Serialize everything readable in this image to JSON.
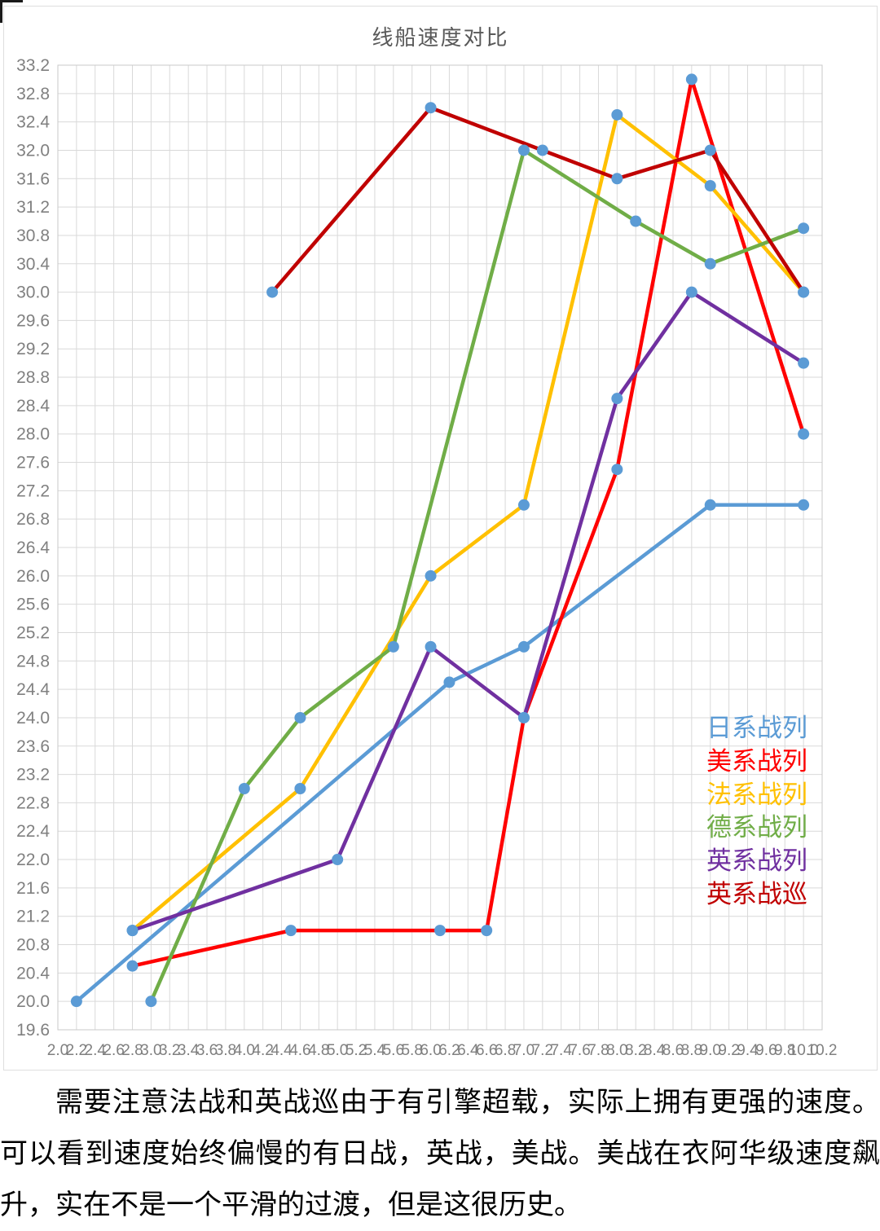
{
  "page": {
    "paragraph": "需要注意法战和英战巡由于有引擎超载，实际上拥有更强的速度。可以看到速度始终偏慢的有日战，英战，美战。美战在衣阿华级速度飙升，实在不是一个平滑的过渡，但是这很历史。"
  },
  "chart_data": {
    "type": "line",
    "title": "线船速度对比",
    "xlabel": "",
    "ylabel": "",
    "xlim": [
      2.0,
      10.2
    ],
    "ylim": [
      19.6,
      33.2
    ],
    "grid": true,
    "legend_position": "right-inside",
    "grid_color": "#d9d9d9",
    "axis_text_color": "#808080",
    "title_color": "#595959",
    "marker_color": "#5B9BD5",
    "x_ticks": [
      "2.0",
      "2.2",
      "2.4",
      "2.6",
      "2.8",
      "3.0",
      "3.2",
      "3.4",
      "3.6",
      "3.8",
      "4.0",
      "4.2",
      "4.4",
      "4.6",
      "4.8",
      "5.0",
      "5.2",
      "5.4",
      "5.6",
      "5.8",
      "6.0",
      "6.2",
      "6.4",
      "6.6",
      "6.8",
      "7.0",
      "7.2",
      "7.4",
      "7.6",
      "7.8",
      "8.0",
      "8.2",
      "8.4",
      "8.6",
      "8.8",
      "9.0",
      "9.2",
      "9.4",
      "9.6",
      "9.8",
      "10.0",
      "10.2"
    ],
    "y_ticks": [
      "19.6",
      "20.0",
      "20.4",
      "20.8",
      "21.2",
      "21.6",
      "22.0",
      "22.4",
      "22.8",
      "23.2",
      "23.6",
      "24.0",
      "24.4",
      "24.8",
      "25.2",
      "25.6",
      "26.0",
      "26.4",
      "26.8",
      "27.2",
      "27.6",
      "28.0",
      "28.4",
      "28.8",
      "29.2",
      "29.6",
      "30.0",
      "30.4",
      "30.8",
      "31.2",
      "31.6",
      "32.0",
      "32.4",
      "32.8",
      "33.2"
    ],
    "series": [
      {
        "name": "日系战列",
        "color": "#5B9BD5",
        "points": [
          [
            2.2,
            20.0
          ],
          [
            6.2,
            24.5
          ],
          [
            7.0,
            25.0
          ],
          [
            9.0,
            27.0
          ],
          [
            10.0,
            27.0
          ]
        ]
      },
      {
        "name": "美系战列",
        "color": "#FF0000",
        "points": [
          [
            2.8,
            20.5
          ],
          [
            4.5,
            21.0
          ],
          [
            6.1,
            21.0
          ],
          [
            6.6,
            21.0
          ],
          [
            7.0,
            24.0
          ],
          [
            8.0,
            27.5
          ],
          [
            8.8,
            33.0
          ],
          [
            10.0,
            28.0
          ]
        ]
      },
      {
        "name": "法系战列",
        "color": "#FFC000",
        "points": [
          [
            2.8,
            21.0
          ],
          [
            4.6,
            23.0
          ],
          [
            6.0,
            26.0
          ],
          [
            7.0,
            27.0
          ],
          [
            8.0,
            32.5
          ],
          [
            9.0,
            31.5
          ],
          [
            10.0,
            30.0
          ]
        ]
      },
      {
        "name": "德系战列",
        "color": "#70AD47",
        "points": [
          [
            3.0,
            20.0
          ],
          [
            4.0,
            23.0
          ],
          [
            4.6,
            24.0
          ],
          [
            5.6,
            25.0
          ],
          [
            7.0,
            32.0
          ],
          [
            8.2,
            31.0
          ],
          [
            9.0,
            30.4
          ],
          [
            10.0,
            30.9
          ]
        ]
      },
      {
        "name": "英系战列",
        "color": "#7030A0",
        "points": [
          [
            2.8,
            21.0
          ],
          [
            5.0,
            22.0
          ],
          [
            6.0,
            25.0
          ],
          [
            7.0,
            24.0
          ],
          [
            8.0,
            28.5
          ],
          [
            8.8,
            30.0
          ],
          [
            10.0,
            29.0
          ]
        ]
      },
      {
        "name": "英系战巡",
        "color": "#C00000",
        "points": [
          [
            4.3,
            30.0
          ],
          [
            6.0,
            32.6
          ],
          [
            7.2,
            32.0
          ],
          [
            8.0,
            31.6
          ],
          [
            9.0,
            32.0
          ],
          [
            10.0,
            30.0
          ]
        ]
      }
    ]
  }
}
